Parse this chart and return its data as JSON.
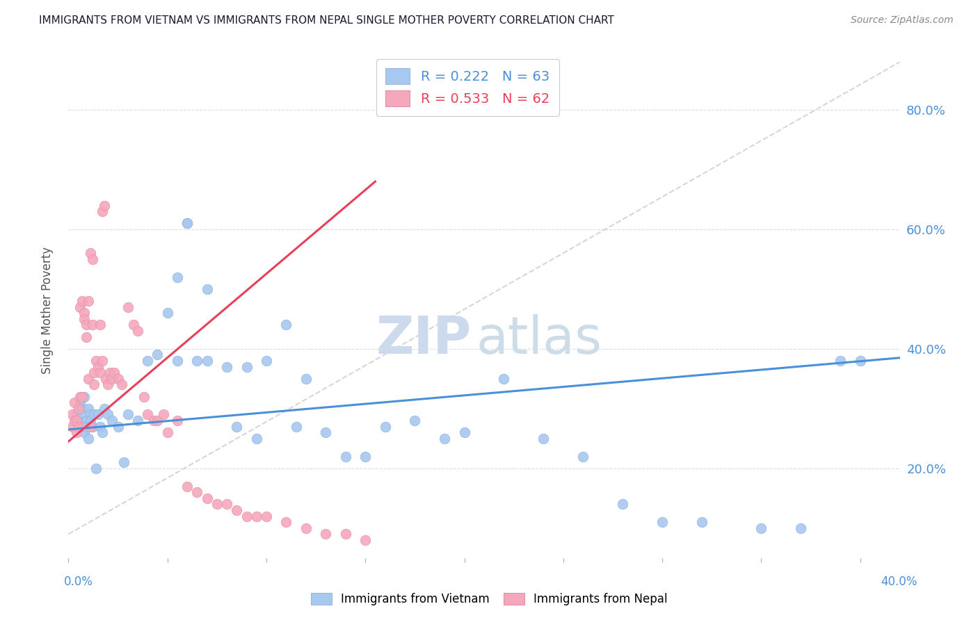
{
  "title": "IMMIGRANTS FROM VIETNAM VS IMMIGRANTS FROM NEPAL SINGLE MOTHER POVERTY CORRELATION CHART",
  "source": "Source: ZipAtlas.com",
  "ylabel": "Single Mother Poverty",
  "xlim": [
    0.0,
    0.42
  ],
  "ylim": [
    0.05,
    0.88
  ],
  "legend_vietnam": "R = 0.222   N = 63",
  "legend_nepal": "R = 0.533   N = 62",
  "R_vietnam": 0.222,
  "N_vietnam": 63,
  "R_nepal": 0.533,
  "N_nepal": 62,
  "color_vietnam": "#a8c8f0",
  "color_nepal": "#f5a8bc",
  "line_color_vietnam": "#4a90d9",
  "line_color_nepal": "#e8405a",
  "watermark_zip_color": "#c8d8f0",
  "watermark_atlas_color": "#c8d8e8",
  "background_color": "#ffffff",
  "grid_color": "#dddddd",
  "vn_x": [
    0.004,
    0.005,
    0.005,
    0.006,
    0.006,
    0.007,
    0.007,
    0.008,
    0.008,
    0.009,
    0.009,
    0.01,
    0.01,
    0.011,
    0.011,
    0.012,
    0.013,
    0.014,
    0.015,
    0.016,
    0.017,
    0.018,
    0.02,
    0.022,
    0.025,
    0.028,
    0.03,
    0.035,
    0.04,
    0.045,
    0.05,
    0.055,
    0.06,
    0.065,
    0.07,
    0.08,
    0.085,
    0.09,
    0.095,
    0.1,
    0.11,
    0.115,
    0.13,
    0.14,
    0.15,
    0.16,
    0.175,
    0.19,
    0.2,
    0.22,
    0.24,
    0.26,
    0.28,
    0.3,
    0.32,
    0.35,
    0.37,
    0.39,
    0.4,
    0.055,
    0.06,
    0.07,
    0.12
  ],
  "vn_y": [
    0.29,
    0.3,
    0.28,
    0.27,
    0.31,
    0.3,
    0.29,
    0.26,
    0.32,
    0.28,
    0.27,
    0.25,
    0.3,
    0.29,
    0.28,
    0.27,
    0.29,
    0.2,
    0.29,
    0.27,
    0.26,
    0.3,
    0.29,
    0.28,
    0.27,
    0.21,
    0.29,
    0.28,
    0.38,
    0.39,
    0.46,
    0.38,
    0.61,
    0.38,
    0.38,
    0.37,
    0.27,
    0.37,
    0.25,
    0.38,
    0.44,
    0.27,
    0.26,
    0.22,
    0.22,
    0.27,
    0.28,
    0.25,
    0.26,
    0.35,
    0.25,
    0.22,
    0.14,
    0.11,
    0.11,
    0.1,
    0.1,
    0.38,
    0.38,
    0.52,
    0.61,
    0.5,
    0.35
  ],
  "np_x": [
    0.002,
    0.002,
    0.003,
    0.003,
    0.004,
    0.004,
    0.005,
    0.005,
    0.006,
    0.006,
    0.007,
    0.007,
    0.008,
    0.008,
    0.009,
    0.009,
    0.01,
    0.01,
    0.011,
    0.011,
    0.012,
    0.012,
    0.013,
    0.013,
    0.014,
    0.015,
    0.016,
    0.016,
    0.017,
    0.017,
    0.018,
    0.019,
    0.02,
    0.021,
    0.022,
    0.023,
    0.025,
    0.027,
    0.03,
    0.033,
    0.035,
    0.038,
    0.04,
    0.043,
    0.045,
    0.048,
    0.05,
    0.055,
    0.06,
    0.065,
    0.07,
    0.075,
    0.08,
    0.085,
    0.09,
    0.095,
    0.1,
    0.11,
    0.12,
    0.13,
    0.14,
    0.15
  ],
  "np_y": [
    0.29,
    0.27,
    0.31,
    0.28,
    0.28,
    0.26,
    0.27,
    0.3,
    0.32,
    0.47,
    0.48,
    0.32,
    0.46,
    0.45,
    0.42,
    0.44,
    0.48,
    0.35,
    0.27,
    0.56,
    0.55,
    0.44,
    0.34,
    0.36,
    0.38,
    0.37,
    0.36,
    0.44,
    0.38,
    0.63,
    0.64,
    0.35,
    0.34,
    0.36,
    0.35,
    0.36,
    0.35,
    0.34,
    0.47,
    0.44,
    0.43,
    0.32,
    0.29,
    0.28,
    0.28,
    0.29,
    0.26,
    0.28,
    0.17,
    0.16,
    0.15,
    0.14,
    0.14,
    0.13,
    0.12,
    0.12,
    0.12,
    0.11,
    0.1,
    0.09,
    0.09,
    0.08
  ],
  "vn_line_x": [
    0.0,
    0.42
  ],
  "vn_line_y": [
    0.265,
    0.385
  ],
  "np_line_x": [
    0.0,
    0.155
  ],
  "np_line_y": [
    0.245,
    0.68
  ],
  "ref_line_x": [
    0.0,
    0.42
  ],
  "ref_line_y": [
    0.09,
    0.88
  ]
}
